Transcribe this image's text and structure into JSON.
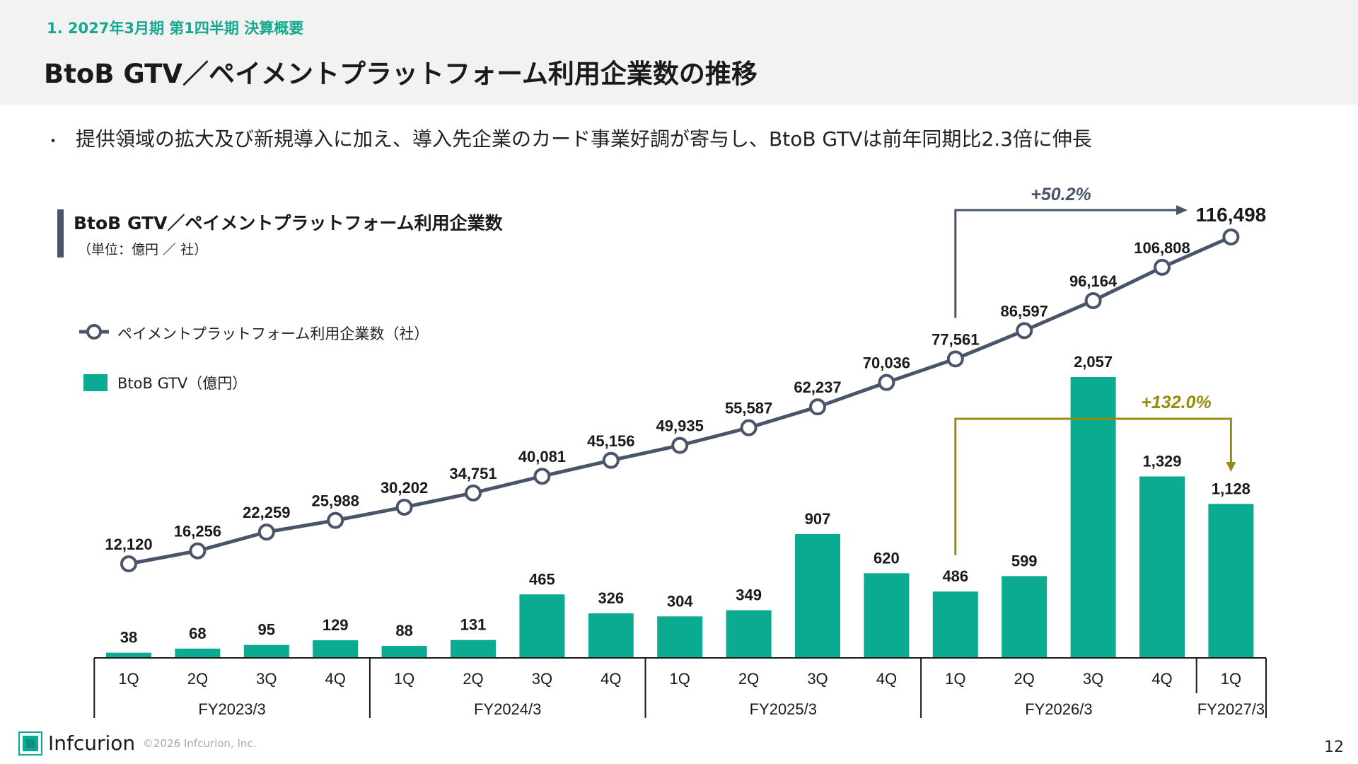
{
  "header": {
    "section_label": "1. 2027年3月期 第1四半期 決算概要",
    "page_title": "BtoB GTV／ペイメントプラットフォーム利用企業数の推移"
  },
  "bullet": {
    "marker": "・",
    "text": "提供領域の拡大及び新規導入に加え、導入先企業のカード事業好調が寄与し、BtoB GTVは前年同期比2.3倍に伸長"
  },
  "chart_header": {
    "title": "BtoB GTV／ペイメントプラットフォーム利用企業数",
    "unit": "（単位：億円 ／ 社）"
  },
  "legend": {
    "line_label": "ペイメントプラットフォーム利用企業数（社）",
    "bar_label": "BtoB GTV（億円）"
  },
  "colors": {
    "bar": "#0aab91",
    "line": "#4a556b",
    "growth_line_arrow": "#4a556b",
    "growth_bar_arrow": "#9a8a10",
    "section_label": "#16a98f"
  },
  "chart_data": {
    "type": "bar+line",
    "categories": [
      "1Q",
      "2Q",
      "3Q",
      "4Q",
      "1Q",
      "2Q",
      "3Q",
      "4Q",
      "1Q",
      "2Q",
      "3Q",
      "4Q",
      "1Q",
      "2Q",
      "3Q",
      "4Q",
      "1Q"
    ],
    "groups": [
      {
        "label": "FY2023/3",
        "count": 4
      },
      {
        "label": "FY2024/3",
        "count": 4
      },
      {
        "label": "FY2025/3",
        "count": 4
      },
      {
        "label": "FY2026/3",
        "count": 4
      },
      {
        "label": "FY2027/3",
        "count": 1
      }
    ],
    "series": [
      {
        "name": "BtoB GTV（億円）",
        "type": "bar",
        "values": [
          38,
          68,
          95,
          129,
          88,
          131,
          465,
          326,
          304,
          349,
          907,
          620,
          486,
          599,
          2057,
          1329,
          1128
        ],
        "labels": [
          "38",
          "68",
          "95",
          "129",
          "88",
          "131",
          "465",
          "326",
          "304",
          "349",
          "907",
          "620",
          "486",
          "599",
          "2,057",
          "1,329",
          "1,128"
        ]
      },
      {
        "name": "ペイメントプラットフォーム利用企業数（社）",
        "type": "line",
        "values": [
          12120,
          16256,
          22259,
          25988,
          30202,
          34751,
          40081,
          45156,
          49935,
          55587,
          62237,
          70036,
          77561,
          86597,
          96164,
          106808,
          116498
        ],
        "labels": [
          "12,120",
          "16,256",
          "22,259",
          "25,988",
          "30,202",
          "34,751",
          "40,081",
          "45,156",
          "49,935",
          "55,587",
          "62,237",
          "70,036",
          "77,561",
          "86,597",
          "96,164",
          "106,808",
          "116,498"
        ]
      }
    ],
    "annotations": [
      {
        "text": "+50.2%",
        "series": "line",
        "from_index": 12,
        "to_index": 16
      },
      {
        "text": "+132.0%",
        "series": "bar",
        "from_index": 12,
        "to_index": 16
      }
    ]
  },
  "footer": {
    "logo_text": "Infcurion",
    "copyright": "©2026 Infcurion, Inc.",
    "page_number": "12"
  }
}
